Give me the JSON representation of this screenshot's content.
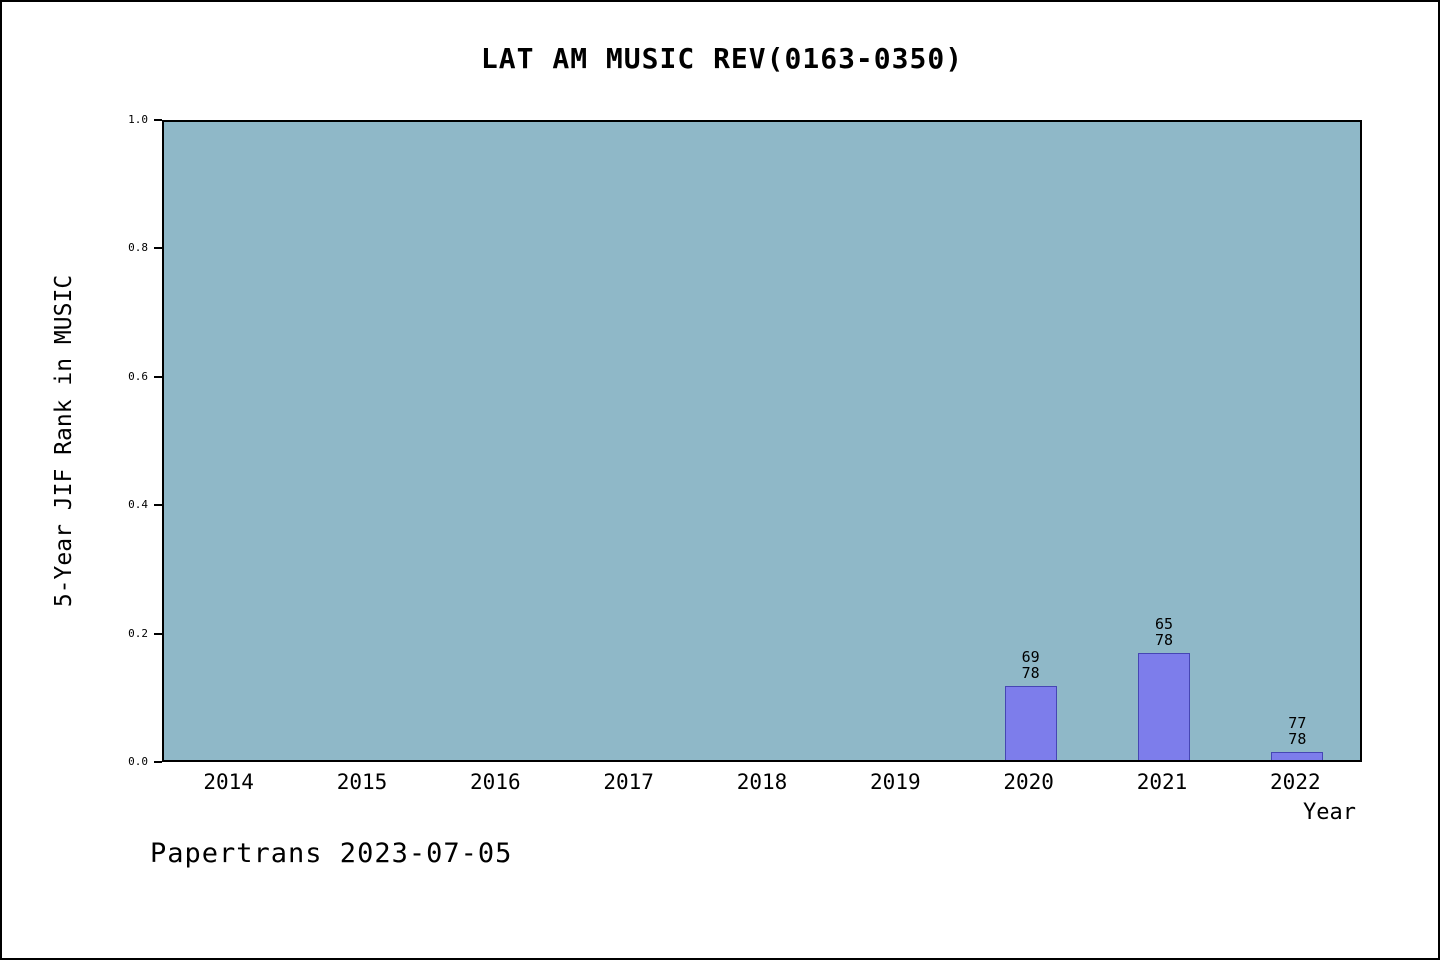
{
  "annotation": "Papertrans 2023-07-05",
  "chart_data": {
    "type": "bar",
    "title": "LAT AM MUSIC REV(0163-0350)",
    "xlabel": "Year",
    "ylabel": "5-Year JIF Rank in MUSIC",
    "ylim": [
      0.0,
      1.0
    ],
    "yticks": [
      "0.0",
      "0.2",
      "0.4",
      "0.6",
      "0.8",
      "1.0"
    ],
    "categories": [
      "2014",
      "2015",
      "2016",
      "2017",
      "2018",
      "2019",
      "2020",
      "2021",
      "2022"
    ],
    "values": [
      null,
      null,
      null,
      null,
      null,
      null,
      0.115,
      0.167,
      0.013
    ],
    "bar_labels": [
      null,
      null,
      null,
      null,
      null,
      null,
      "69/78",
      "65/78",
      "77/78"
    ],
    "legend": null,
    "grid": false,
    "colors": {
      "plot_background": "#8fb8c8",
      "bar_fill": "#7d7deb",
      "bar_edge": "#4646b4",
      "text": "#000000"
    }
  }
}
